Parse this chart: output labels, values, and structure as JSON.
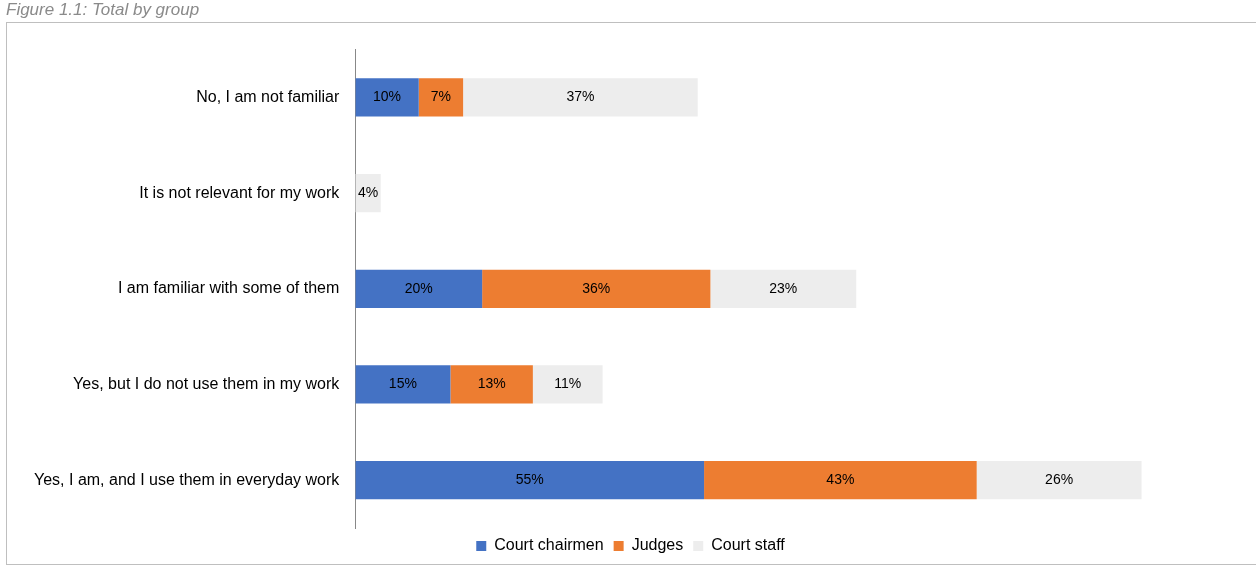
{
  "chart_data": {
    "type": "bar",
    "orientation": "horizontal",
    "stacked": true,
    "title": "Figure 1.1: Total by group",
    "categories": [
      "No, I am not familiar",
      "It is not relevant for my work",
      "I am familiar with some of them",
      "Yes, but I do not use them in my work",
      "Yes, I am, and I use them in everyday work"
    ],
    "series": [
      {
        "name": "Court chairmen",
        "color": "#4472c4",
        "values": [
          10,
          null,
          20,
          15,
          55
        ],
        "value_labels": [
          "10%",
          null,
          "20%",
          "15%",
          "55%"
        ]
      },
      {
        "name": "Judges",
        "color": "#ed7d31",
        "values": [
          7,
          null,
          36,
          13,
          43
        ],
        "value_labels": [
          "7%",
          null,
          "36%",
          "13%",
          "43%"
        ]
      },
      {
        "name": "Court staff",
        "color": "#ededed",
        "values": [
          37,
          4,
          23,
          11,
          26
        ],
        "value_labels": [
          "37%",
          "4%",
          "23%",
          "11%",
          "26%"
        ]
      }
    ],
    "legend": "bottom"
  }
}
